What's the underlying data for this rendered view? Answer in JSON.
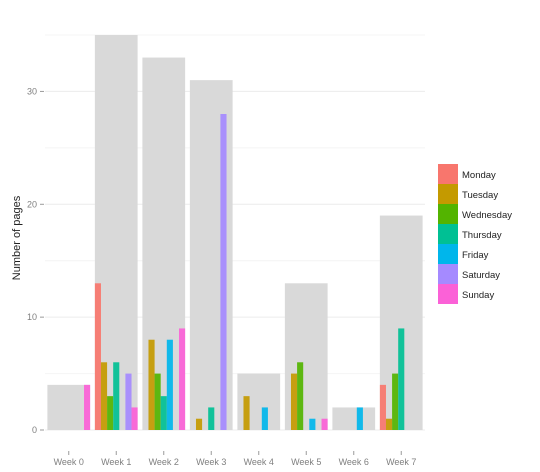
{
  "chart_data": {
    "type": "bar",
    "title": "",
    "xlabel": "",
    "ylabel": "Number of pages",
    "ylim": [
      0,
      35
    ],
    "yticks": [
      0,
      10,
      20,
      30
    ],
    "grid": true,
    "legend_position": "right",
    "categories": [
      "Week 0",
      "Week 1",
      "Week 2",
      "Week 3",
      "Week 4",
      "Week 5",
      "Week 6",
      "Week 7"
    ],
    "totals": [
      4,
      35,
      33,
      31,
      5,
      13,
      2,
      19
    ],
    "totals_color": "#d9d9d9",
    "series": [
      {
        "name": "Monday",
        "color": "#F8766D",
        "values": [
          0,
          13,
          0,
          0,
          0,
          0,
          0,
          4
        ]
      },
      {
        "name": "Tuesday",
        "color": "#C49A00",
        "values": [
          0,
          6,
          8,
          1,
          3,
          5,
          0,
          1
        ]
      },
      {
        "name": "Wednesday",
        "color": "#53B400",
        "values": [
          0,
          3,
          5,
          0,
          0,
          6,
          0,
          5
        ]
      },
      {
        "name": "Thursday",
        "color": "#00C094",
        "values": [
          0,
          6,
          3,
          2,
          0,
          0,
          0,
          9
        ]
      },
      {
        "name": "Friday",
        "color": "#00B6EB",
        "values": [
          0,
          0,
          8,
          0,
          2,
          1,
          2,
          0
        ]
      },
      {
        "name": "Saturday",
        "color": "#A58AFF",
        "values": [
          0,
          5,
          0,
          28,
          0,
          0,
          0,
          0
        ]
      },
      {
        "name": "Sunday",
        "color": "#FB61D7",
        "values": [
          4,
          2,
          9,
          0,
          0,
          1,
          0,
          0
        ]
      }
    ]
  }
}
